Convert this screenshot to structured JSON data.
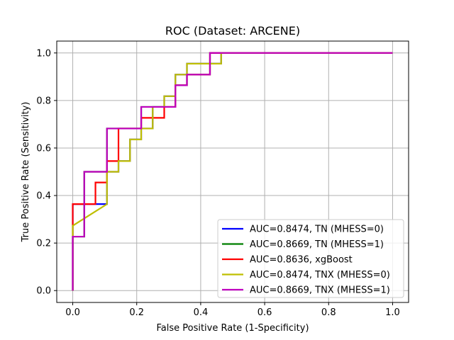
{
  "chart_data": {
    "type": "line",
    "title": "ROC (Dataset: ARCENE)",
    "xlabel": "False Positive Rate (1-Specificity)",
    "ylabel": "True Positive Rate (Sensitivity)",
    "xlim": [
      -0.05,
      1.05
    ],
    "ylim": [
      -0.05,
      1.05
    ],
    "xticks": [
      "0.0",
      "0.2",
      "0.4",
      "0.6",
      "0.8",
      "1.0"
    ],
    "yticks": [
      "0.0",
      "0.2",
      "0.4",
      "0.6",
      "0.8",
      "1.0"
    ],
    "grid": true,
    "legend_position": "lower-right",
    "series": [
      {
        "name": "AUC=0.8474, TN (MHESS=0)",
        "color": "#0000ff",
        "x": [
          0.0,
          0.0,
          0.107,
          0.107,
          0.143,
          0.143,
          0.179,
          0.179,
          0.214,
          0.214,
          0.25,
          0.25,
          0.286,
          0.286,
          0.321,
          0.321,
          0.357,
          0.357,
          0.464,
          0.464,
          1.0
        ],
        "y": [
          0.0,
          0.364,
          0.364,
          0.5,
          0.5,
          0.545,
          0.545,
          0.636,
          0.636,
          0.682,
          0.682,
          0.773,
          0.773,
          0.818,
          0.818,
          0.909,
          0.909,
          0.955,
          0.955,
          1.0,
          1.0
        ]
      },
      {
        "name": "AUC=0.8669, TN (MHESS=1)",
        "color": "#008000",
        "x": [
          0.0,
          0.0,
          0.036,
          0.036,
          0.107,
          0.107,
          0.214,
          0.214,
          0.321,
          0.321,
          0.357,
          0.357,
          0.429,
          0.429,
          1.0
        ],
        "y": [
          0.0,
          0.227,
          0.227,
          0.5,
          0.5,
          0.682,
          0.682,
          0.773,
          0.773,
          0.864,
          0.864,
          0.909,
          0.909,
          1.0,
          1.0
        ]
      },
      {
        "name": "AUC=0.8636, xgBoost",
        "color": "#ff0000",
        "x": [
          0.0,
          0.0,
          0.071,
          0.071,
          0.107,
          0.107,
          0.143,
          0.143,
          0.214,
          0.214,
          0.286,
          0.286,
          0.321,
          0.321,
          0.357,
          0.357,
          0.429,
          0.429,
          1.0
        ],
        "y": [
          0.0,
          0.364,
          0.364,
          0.455,
          0.455,
          0.545,
          0.545,
          0.682,
          0.682,
          0.727,
          0.727,
          0.773,
          0.773,
          0.864,
          0.864,
          0.909,
          0.909,
          1.0,
          1.0
        ]
      },
      {
        "name": "AUC=0.8474, TNX (MHESS=0)",
        "color": "#bfbf00",
        "x": [
          0.0,
          0.0,
          0.107,
          0.107,
          0.143,
          0.143,
          0.179,
          0.179,
          0.214,
          0.214,
          0.25,
          0.25,
          0.286,
          0.286,
          0.321,
          0.321,
          0.357,
          0.357,
          0.464,
          0.464,
          1.0
        ],
        "y": [
          0.0,
          0.273,
          0.364,
          0.5,
          0.5,
          0.545,
          0.545,
          0.636,
          0.636,
          0.682,
          0.682,
          0.773,
          0.773,
          0.818,
          0.818,
          0.909,
          0.909,
          0.955,
          0.955,
          1.0,
          1.0
        ]
      },
      {
        "name": "AUC=0.8669, TNX (MHESS=1)",
        "color": "#bf00bf",
        "x": [
          0.0,
          0.0,
          0.036,
          0.036,
          0.107,
          0.107,
          0.214,
          0.214,
          0.321,
          0.321,
          0.357,
          0.357,
          0.429,
          0.429,
          1.0
        ],
        "y": [
          0.0,
          0.227,
          0.227,
          0.5,
          0.5,
          0.682,
          0.682,
          0.773,
          0.773,
          0.864,
          0.864,
          0.909,
          0.909,
          1.0,
          1.0
        ]
      }
    ]
  }
}
